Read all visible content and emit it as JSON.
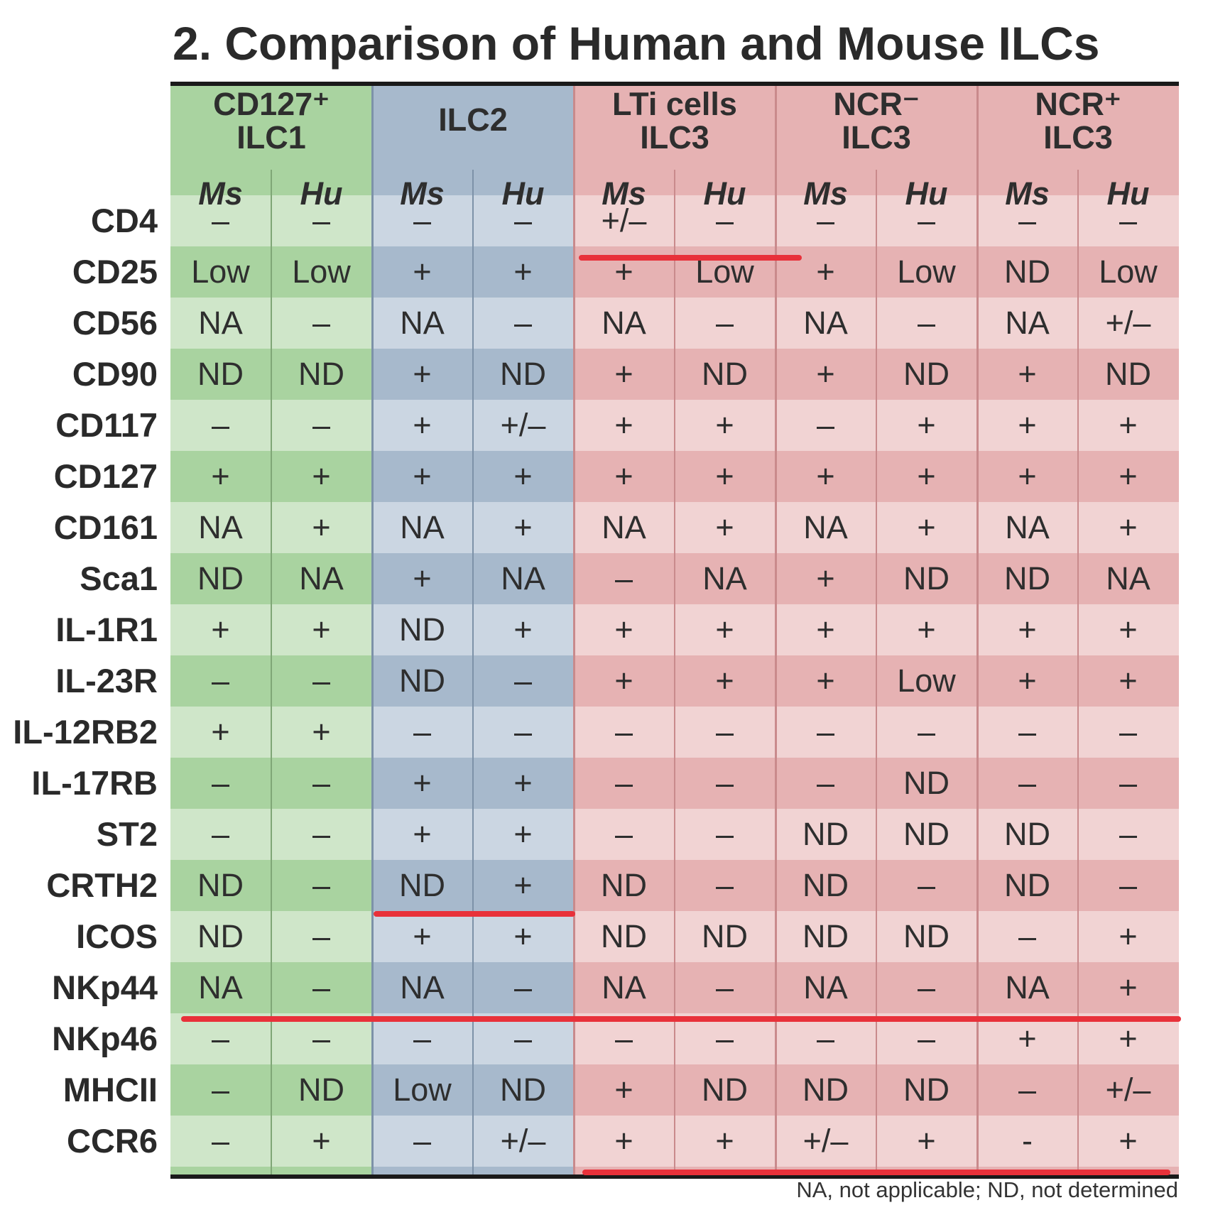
{
  "title": "2. Comparison of Human and Mouse ILCs",
  "footnote": "NA, not applicable; ND, not determined",
  "groups": [
    {
      "line1": "CD127⁺",
      "line2": "ILC1",
      "color": "#a9d3a0",
      "light": "#cfe6c9",
      "sep": "#7fa676"
    },
    {
      "line1": "ILC2",
      "line2": "",
      "color": "#a7b9cc",
      "light": "#cbd6e2",
      "sep": "#7d92a8"
    },
    {
      "line1": "LTi cells",
      "line2": "ILC3",
      "color": "#e6b2b3",
      "light": "#f1d3d3",
      "sep": "#c98a8c"
    },
    {
      "line1": "NCR⁻",
      "line2": "ILC3",
      "color": "#e6b2b3",
      "light": "#f1d3d3",
      "sep": "#c98a8c"
    },
    {
      "line1": "NCR⁺",
      "line2": "ILC3",
      "color": "#e6b2b3",
      "light": "#f1d3d3",
      "sep": "#c98a8c"
    }
  ],
  "subheaders": [
    "Ms",
    "Hu",
    "Ms",
    "Hu",
    "Ms",
    "Hu",
    "Ms",
    "Hu",
    "Ms",
    "Hu"
  ],
  "rows": [
    {
      "label": "CD4",
      "values": [
        "–",
        "–",
        "–",
        "–",
        "+/–",
        "–",
        "–",
        "–",
        "–",
        "–"
      ]
    },
    {
      "label": "CD25",
      "values": [
        "Low",
        "Low",
        "+",
        "+",
        "+",
        "Low",
        "+",
        "Low",
        "ND",
        "Low"
      ]
    },
    {
      "label": "CD56",
      "values": [
        "NA",
        "–",
        "NA",
        "–",
        "NA",
        "–",
        "NA",
        "–",
        "NA",
        "+/–"
      ]
    },
    {
      "label": "CD90",
      "values": [
        "ND",
        "ND",
        "+",
        "ND",
        "+",
        "ND",
        "+",
        "ND",
        "+",
        "ND"
      ]
    },
    {
      "label": "CD117",
      "values": [
        "–",
        "–",
        "+",
        "+/–",
        "+",
        "+",
        "–",
        "+",
        "+",
        "+"
      ]
    },
    {
      "label": "CD127",
      "values": [
        "+",
        "+",
        "+",
        "+",
        "+",
        "+",
        "+",
        "+",
        "+",
        "+"
      ]
    },
    {
      "label": "CD161",
      "values": [
        "NA",
        "+",
        "NA",
        "+",
        "NA",
        "+",
        "NA",
        "+",
        "NA",
        "+"
      ]
    },
    {
      "label": "Sca1",
      "values": [
        "ND",
        "NA",
        "+",
        "NA",
        "–",
        "NA",
        "+",
        "ND",
        "ND",
        "NA"
      ]
    },
    {
      "label": "IL-1R1",
      "values": [
        "+",
        "+",
        "ND",
        "+",
        "+",
        "+",
        "+",
        "+",
        "+",
        "+"
      ]
    },
    {
      "label": "IL-23R",
      "values": [
        "–",
        "–",
        "ND",
        "–",
        "+",
        "+",
        "+",
        "Low",
        "+",
        "+"
      ]
    },
    {
      "label": "IL-12RB2",
      "values": [
        "+",
        "+",
        "–",
        "–",
        "–",
        "–",
        "–",
        "–",
        "–",
        "–"
      ]
    },
    {
      "label": "IL-17RB",
      "values": [
        "–",
        "–",
        "+",
        "+",
        "–",
        "–",
        "–",
        "ND",
        "–",
        "–"
      ]
    },
    {
      "label": "ST2",
      "values": [
        "–",
        "–",
        "+",
        "+",
        "–",
        "–",
        "ND",
        "ND",
        "ND",
        "–"
      ]
    },
    {
      "label": "CRTH2",
      "values": [
        "ND",
        "–",
        "ND",
        "+",
        "ND",
        "–",
        "ND",
        "–",
        "ND",
        "–"
      ]
    },
    {
      "label": "ICOS",
      "values": [
        "ND",
        "–",
        "+",
        "+",
        "ND",
        "ND",
        "ND",
        "ND",
        "–",
        "+"
      ]
    },
    {
      "label": "NKp44",
      "values": [
        "NA",
        "–",
        "NA",
        "–",
        "NA",
        "–",
        "NA",
        "–",
        "NA",
        "+"
      ]
    },
    {
      "label": "NKp46",
      "values": [
        "–",
        "–",
        "–",
        "–",
        "–",
        "–",
        "–",
        "–",
        "+",
        "+"
      ]
    },
    {
      "label": "MHCII",
      "values": [
        "–",
        "ND",
        "Low",
        "ND",
        "+",
        "ND",
        "ND",
        "ND",
        "–",
        "+/–"
      ]
    },
    {
      "label": "CCR6",
      "values": [
        "–",
        "+",
        "–",
        "+/–",
        "+",
        "+",
        "+/–",
        "+",
        "-",
        "+"
      ]
    }
  ],
  "highlight_color": "#e8313a"
}
